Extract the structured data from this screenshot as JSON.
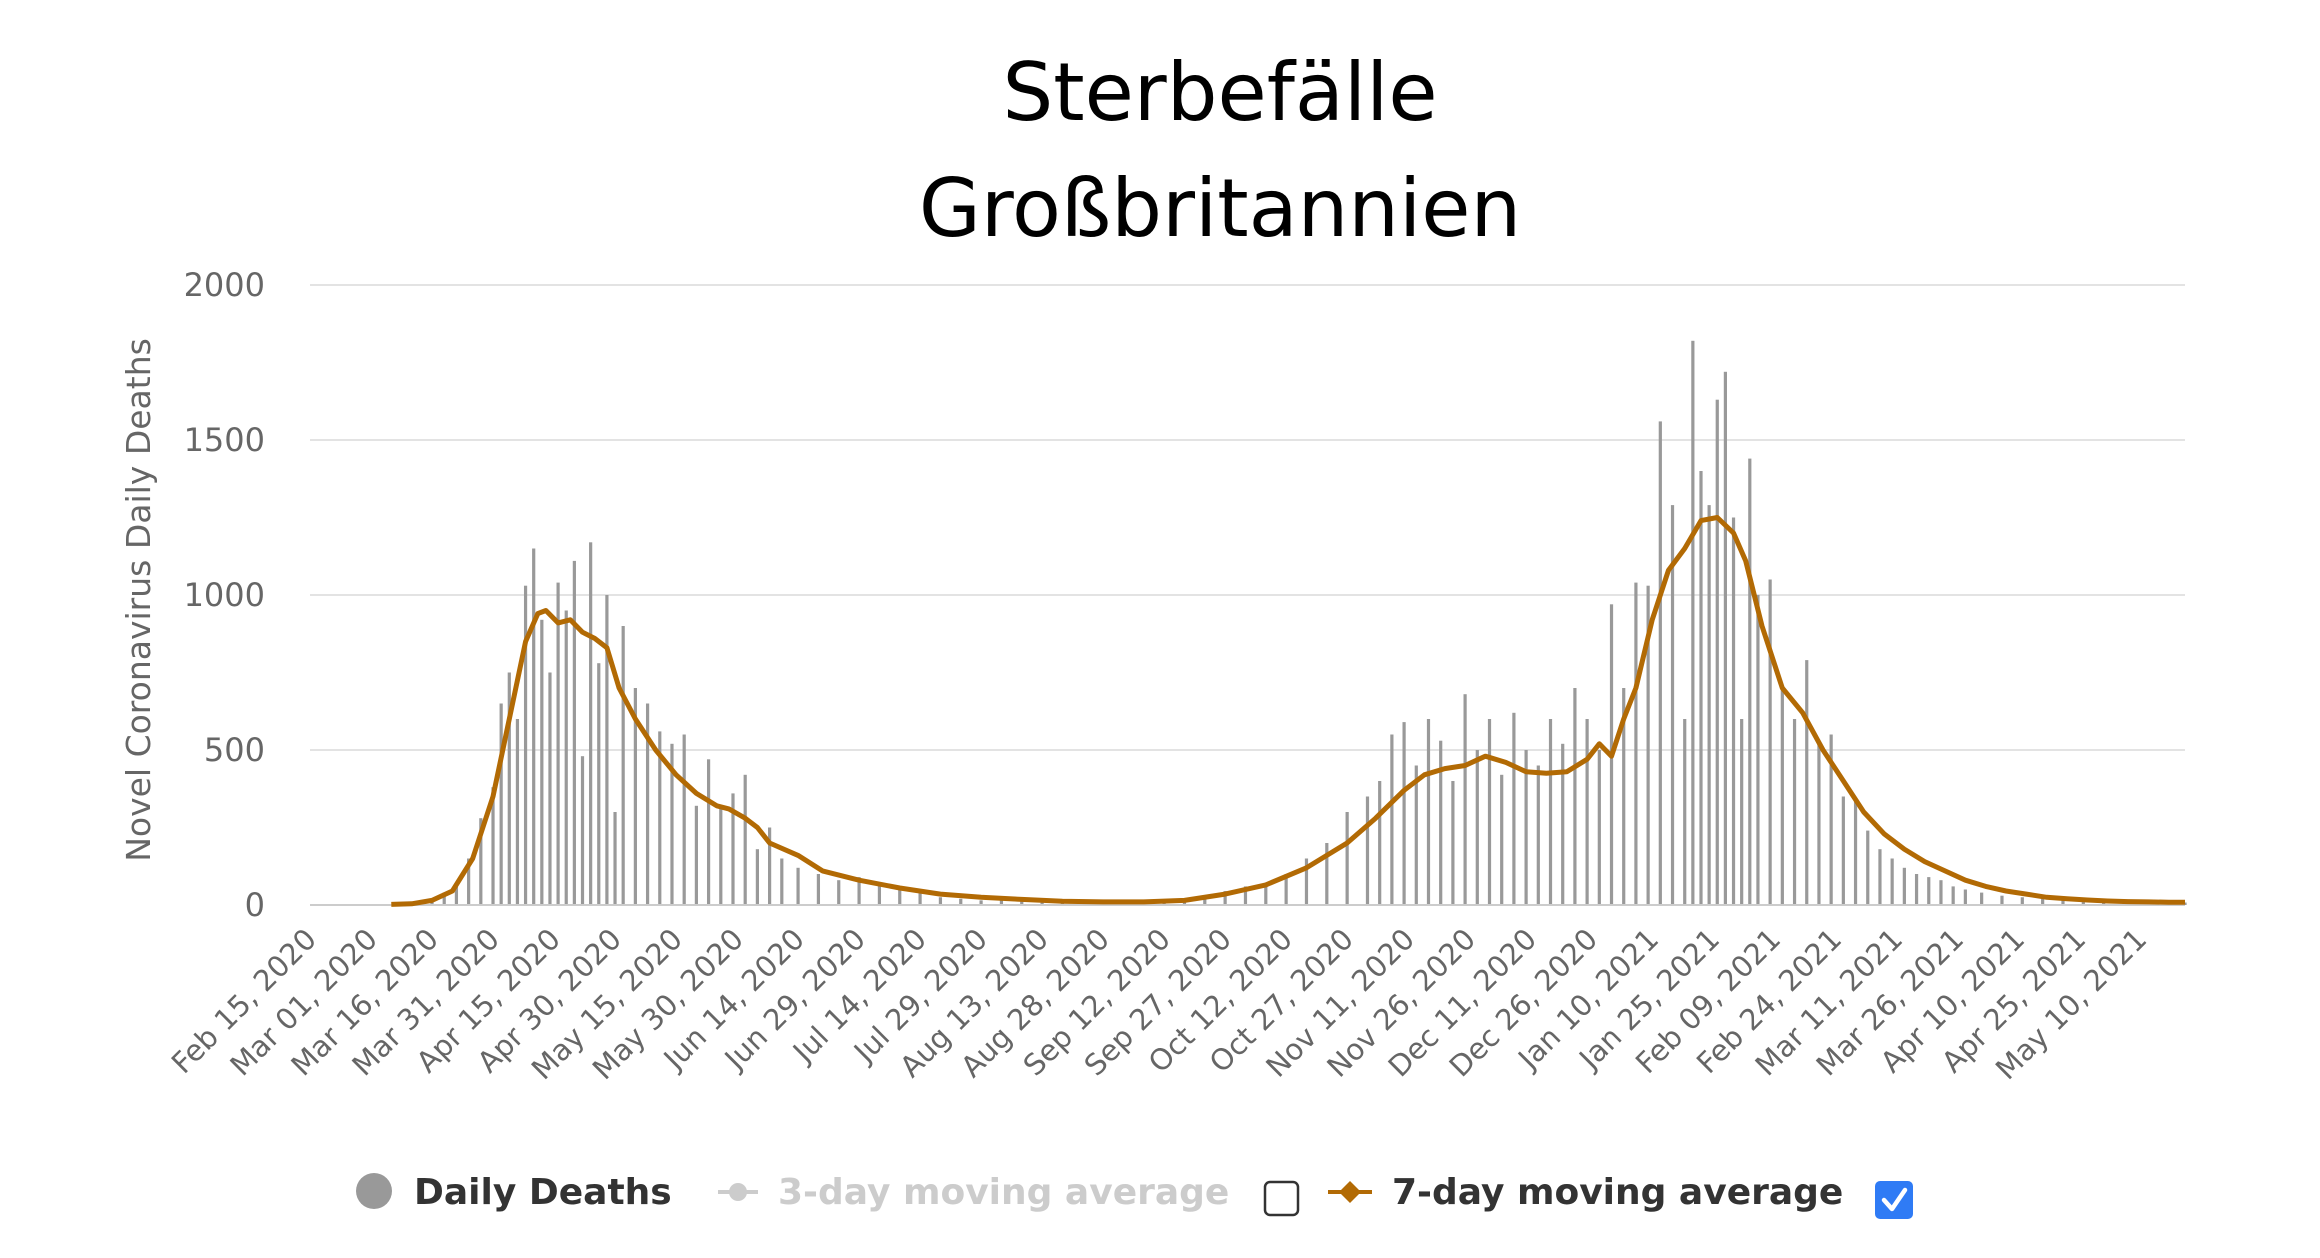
{
  "title_lines": [
    "Sterbefälle",
    "Großbritannien"
  ],
  "colors": {
    "bars": "#999999",
    "ma7": "#b26a04",
    "ma3_disabled": "#cccccc",
    "checkbox_checked": "#2f7bf5",
    "grid": "#e3e3e3",
    "axis_text": "#666666"
  },
  "legend": {
    "items": [
      {
        "label": "Daily Deaths",
        "icon": "circle-marker-icon",
        "active": true
      },
      {
        "label": "3-day moving average",
        "icon": "line-circle-marker-icon",
        "active": false,
        "checkbox_checked": false
      },
      {
        "label": "7-day moving average",
        "icon": "line-diamond-marker-icon",
        "active": true,
        "checkbox_checked": true
      }
    ]
  },
  "chart_data": {
    "type": "bar",
    "title": "Sterbefälle Großbritannien",
    "ylabel": "Novel Coronavirus Daily Deaths",
    "xlabel": "",
    "ylim": [
      0,
      2000
    ],
    "yticks": [
      "0",
      "500",
      "1000",
      "1500",
      "2000"
    ],
    "grid": true,
    "legend_position": "bottom",
    "x_start": "Feb 15, 2020",
    "x_end": "May 21, 2021",
    "xticks": [
      "Feb 15, 2020",
      "Mar 01, 2020",
      "Mar 16, 2020",
      "Mar 31, 2020",
      "Apr 15, 2020",
      "Apr 30, 2020",
      "May 15, 2020",
      "May 30, 2020",
      "Jun 14, 2020",
      "Jun 29, 2020",
      "Jul 14, 2020",
      "Jul 29, 2020",
      "Aug 13, 2020",
      "Aug 28, 2020",
      "Sep 12, 2020",
      "Sep 27, 2020",
      "Oct 12, 2020",
      "Oct 27, 2020",
      "Nov 11, 2020",
      "Nov 26, 2020",
      "Dec 11, 2020",
      "Dec 26, 2020",
      "Jan 10, 2021",
      "Jan 25, 2021",
      "Feb 09, 2021",
      "Feb 24, 2021",
      "Mar 11, 2021",
      "Mar 26, 2021",
      "Apr 10, 2021",
      "Apr 25, 2021",
      "May 10, 2021"
    ],
    "series": [
      {
        "name": "Daily Deaths",
        "type": "bar",
        "points": [
          [
            "Mar 06, 2020",
            1
          ],
          [
            "Mar 11, 2020",
            3
          ],
          [
            "Mar 16, 2020",
            20
          ],
          [
            "Mar 19, 2020",
            40
          ],
          [
            "Mar 22, 2020",
            60
          ],
          [
            "Mar 25, 2020",
            150
          ],
          [
            "Mar 28, 2020",
            280
          ],
          [
            "Mar 31, 2020",
            380
          ],
          [
            "Apr 02, 2020",
            650
          ],
          [
            "Apr 04, 2020",
            750
          ],
          [
            "Apr 06, 2020",
            600
          ],
          [
            "Apr 08, 2020",
            1030
          ],
          [
            "Apr 10, 2020",
            1150
          ],
          [
            "Apr 12, 2020",
            920
          ],
          [
            "Apr 14, 2020",
            750
          ],
          [
            "Apr 16, 2020",
            1040
          ],
          [
            "Apr 18, 2020",
            950
          ],
          [
            "Apr 20, 2020",
            1110
          ],
          [
            "Apr 22, 2020",
            480
          ],
          [
            "Apr 24, 2020",
            1170
          ],
          [
            "Apr 26, 2020",
            780
          ],
          [
            "Apr 28, 2020",
            1000
          ],
          [
            "Apr 30, 2020",
            300
          ],
          [
            "May 02, 2020",
            900
          ],
          [
            "May 05, 2020",
            700
          ],
          [
            "May 08, 2020",
            650
          ],
          [
            "May 11, 2020",
            560
          ],
          [
            "May 14, 2020",
            520
          ],
          [
            "May 17, 2020",
            550
          ],
          [
            "May 20, 2020",
            320
          ],
          [
            "May 23, 2020",
            470
          ],
          [
            "May 26, 2020",
            320
          ],
          [
            "May 29, 2020",
            360
          ],
          [
            "Jun 01, 2020",
            420
          ],
          [
            "Jun 04, 2020",
            180
          ],
          [
            "Jun 07, 2020",
            250
          ],
          [
            "Jun 10, 2020",
            150
          ],
          [
            "Jun 14, 2020",
            120
          ],
          [
            "Jun 19, 2020",
            100
          ],
          [
            "Jun 24, 2020",
            80
          ],
          [
            "Jun 29, 2020",
            90
          ],
          [
            "Jul 04, 2020",
            70
          ],
          [
            "Jul 09, 2020",
            50
          ],
          [
            "Jul 14, 2020",
            40
          ],
          [
            "Jul 19, 2020",
            25
          ],
          [
            "Jul 24, 2020",
            20
          ],
          [
            "Jul 29, 2020",
            15
          ],
          [
            "Aug 03, 2020",
            15
          ],
          [
            "Aug 08, 2020",
            12
          ],
          [
            "Aug 13, 2020",
            12
          ],
          [
            "Aug 18, 2020",
            10
          ],
          [
            "Aug 23, 2020",
            10
          ],
          [
            "Aug 28, 2020",
            10
          ],
          [
            "Sep 02, 2020",
            10
          ],
          [
            "Sep 07, 2020",
            12
          ],
          [
            "Sep 12, 2020",
            15
          ],
          [
            "Sep 17, 2020",
            20
          ],
          [
            "Sep 22, 2020",
            30
          ],
          [
            "Sep 27, 2020",
            45
          ],
          [
            "Oct 02, 2020",
            60
          ],
          [
            "Oct 07, 2020",
            70
          ],
          [
            "Oct 12, 2020",
            100
          ],
          [
            "Oct 17, 2020",
            150
          ],
          [
            "Oct 22, 2020",
            200
          ],
          [
            "Oct 27, 2020",
            300
          ],
          [
            "Nov 01, 2020",
            350
          ],
          [
            "Nov 04, 2020",
            400
          ],
          [
            "Nov 07, 2020",
            550
          ],
          [
            "Nov 10, 2020",
            590
          ],
          [
            "Nov 13, 2020",
            450
          ],
          [
            "Nov 16, 2020",
            600
          ],
          [
            "Nov 19, 2020",
            530
          ],
          [
            "Nov 22, 2020",
            400
          ],
          [
            "Nov 25, 2020",
            680
          ],
          [
            "Nov 28, 2020",
            500
          ],
          [
            "Dec 01, 2020",
            600
          ],
          [
            "Dec 04, 2020",
            420
          ],
          [
            "Dec 07, 2020",
            620
          ],
          [
            "Dec 10, 2020",
            500
          ],
          [
            "Dec 13, 2020",
            450
          ],
          [
            "Dec 16, 2020",
            600
          ],
          [
            "Dec 19, 2020",
            520
          ],
          [
            "Dec 22, 2020",
            700
          ],
          [
            "Dec 25, 2020",
            600
          ],
          [
            "Dec 28, 2020",
            500
          ],
          [
            "Dec 31, 2020",
            970
          ],
          [
            "Jan 03, 2021",
            700
          ],
          [
            "Jan 06, 2021",
            1040
          ],
          [
            "Jan 09, 2021",
            1030
          ],
          [
            "Jan 12, 2021",
            1560
          ],
          [
            "Jan 15, 2021",
            1290
          ],
          [
            "Jan 18, 2021",
            600
          ],
          [
            "Jan 20, 2021",
            1820
          ],
          [
            "Jan 22, 2021",
            1400
          ],
          [
            "Jan 24, 2021",
            1290
          ],
          [
            "Jan 26, 2021",
            1630
          ],
          [
            "Jan 28, 2021",
            1720
          ],
          [
            "Jan 30, 2021",
            1250
          ],
          [
            "Feb 01, 2021",
            600
          ],
          [
            "Feb 03, 2021",
            1440
          ],
          [
            "Feb 05, 2021",
            1000
          ],
          [
            "Feb 08, 2021",
            1050
          ],
          [
            "Feb 11, 2021",
            700
          ],
          [
            "Feb 14, 2021",
            600
          ],
          [
            "Feb 17, 2021",
            790
          ],
          [
            "Feb 20, 2021",
            530
          ],
          [
            "Feb 23, 2021",
            550
          ],
          [
            "Feb 26, 2021",
            350
          ],
          [
            "Mar 01, 2021",
            340
          ],
          [
            "Mar 04, 2021",
            240
          ],
          [
            "Mar 07, 2021",
            180
          ],
          [
            "Mar 10, 2021",
            150
          ],
          [
            "Mar 13, 2021",
            120
          ],
          [
            "Mar 16, 2021",
            100
          ],
          [
            "Mar 19, 2021",
            90
          ],
          [
            "Mar 22, 2021",
            80
          ],
          [
            "Mar 25, 2021",
            60
          ],
          [
            "Mar 28, 2021",
            50
          ],
          [
            "Apr 01, 2021",
            40
          ],
          [
            "Apr 06, 2021",
            30
          ],
          [
            "Apr 11, 2021",
            25
          ],
          [
            "Apr 16, 2021",
            20
          ],
          [
            "Apr 21, 2021",
            18
          ],
          [
            "Apr 26, 2021",
            15
          ],
          [
            "May 01, 2021",
            12
          ],
          [
            "May 06, 2021",
            10
          ],
          [
            "May 11, 2021",
            10
          ],
          [
            "May 16, 2021",
            8
          ],
          [
            "May 21, 2021",
            8
          ]
        ]
      },
      {
        "name": "7-day moving average",
        "type": "line",
        "points": [
          [
            "Mar 06, 2020",
            2
          ],
          [
            "Mar 11, 2020",
            4
          ],
          [
            "Mar 16, 2020",
            15
          ],
          [
            "Mar 21, 2020",
            45
          ],
          [
            "Mar 26, 2020",
            150
          ],
          [
            "Mar 31, 2020",
            350
          ],
          [
            "Apr 04, 2020",
            600
          ],
          [
            "Apr 08, 2020",
            850
          ],
          [
            "Apr 11, 2020",
            940
          ],
          [
            "Apr 13, 2020",
            950
          ],
          [
            "Apr 16, 2020",
            910
          ],
          [
            "Apr 19, 2020",
            920
          ],
          [
            "Apr 22, 2020",
            880
          ],
          [
            "Apr 25, 2020",
            860
          ],
          [
            "Apr 28, 2020",
            830
          ],
          [
            "May 01, 2020",
            700
          ],
          [
            "May 05, 2020",
            600
          ],
          [
            "May 10, 2020",
            500
          ],
          [
            "May 15, 2020",
            420
          ],
          [
            "May 20, 2020",
            360
          ],
          [
            "May 25, 2020",
            320
          ],
          [
            "May 28, 2020",
            310
          ],
          [
            "Jun 01, 2020",
            280
          ],
          [
            "Jun 04, 2020",
            250
          ],
          [
            "Jun 07, 2020",
            200
          ],
          [
            "Jun 14, 2020",
            160
          ],
          [
            "Jun 20, 2020",
            110
          ],
          [
            "Jun 29, 2020",
            80
          ],
          [
            "Jul 09, 2020",
            55
          ],
          [
            "Jul 19, 2020",
            35
          ],
          [
            "Jul 29, 2020",
            25
          ],
          [
            "Aug 08, 2020",
            18
          ],
          [
            "Aug 18, 2020",
            12
          ],
          [
            "Aug 28, 2020",
            10
          ],
          [
            "Sep 07, 2020",
            10
          ],
          [
            "Sep 17, 2020",
            15
          ],
          [
            "Sep 27, 2020",
            35
          ],
          [
            "Oct 07, 2020",
            65
          ],
          [
            "Oct 17, 2020",
            120
          ],
          [
            "Oct 27, 2020",
            200
          ],
          [
            "Nov 03, 2020",
            280
          ],
          [
            "Nov 10, 2020",
            370
          ],
          [
            "Nov 15, 2020",
            420
          ],
          [
            "Nov 20, 2020",
            440
          ],
          [
            "Nov 25, 2020",
            450
          ],
          [
            "Nov 30, 2020",
            480
          ],
          [
            "Dec 05, 2020",
            460
          ],
          [
            "Dec 10, 2020",
            430
          ],
          [
            "Dec 15, 2020",
            425
          ],
          [
            "Dec 20, 2020",
            430
          ],
          [
            "Dec 25, 2020",
            470
          ],
          [
            "Dec 28, 2020",
            520
          ],
          [
            "Dec 31, 2020",
            480
          ],
          [
            "Jan 03, 2021",
            600
          ],
          [
            "Jan 06, 2021",
            700
          ],
          [
            "Jan 10, 2021",
            920
          ],
          [
            "Jan 14, 2021",
            1080
          ],
          [
            "Jan 18, 2021",
            1150
          ],
          [
            "Jan 22, 2021",
            1240
          ],
          [
            "Jan 26, 2021",
            1250
          ],
          [
            "Jan 30, 2021",
            1200
          ],
          [
            "Feb 02, 2021",
            1110
          ],
          [
            "Feb 06, 2021",
            900
          ],
          [
            "Feb 11, 2021",
            700
          ],
          [
            "Feb 16, 2021",
            620
          ],
          [
            "Feb 21, 2021",
            500
          ],
          [
            "Feb 26, 2021",
            400
          ],
          [
            "Mar 03, 2021",
            300
          ],
          [
            "Mar 08, 2021",
            230
          ],
          [
            "Mar 13, 2021",
            180
          ],
          [
            "Mar 18, 2021",
            140
          ],
          [
            "Mar 23, 2021",
            110
          ],
          [
            "Mar 28, 2021",
            80
          ],
          [
            "Apr 02, 2021",
            60
          ],
          [
            "Apr 07, 2021",
            45
          ],
          [
            "Apr 12, 2021",
            35
          ],
          [
            "Apr 17, 2021",
            25
          ],
          [
            "Apr 22, 2021",
            20
          ],
          [
            "Apr 27, 2021",
            16
          ],
          [
            "May 02, 2021",
            13
          ],
          [
            "May 07, 2021",
            11
          ],
          [
            "May 12, 2021",
            10
          ],
          [
            "May 17, 2021",
            9
          ],
          [
            "May 21, 2021",
            9
          ]
        ]
      }
    ]
  }
}
